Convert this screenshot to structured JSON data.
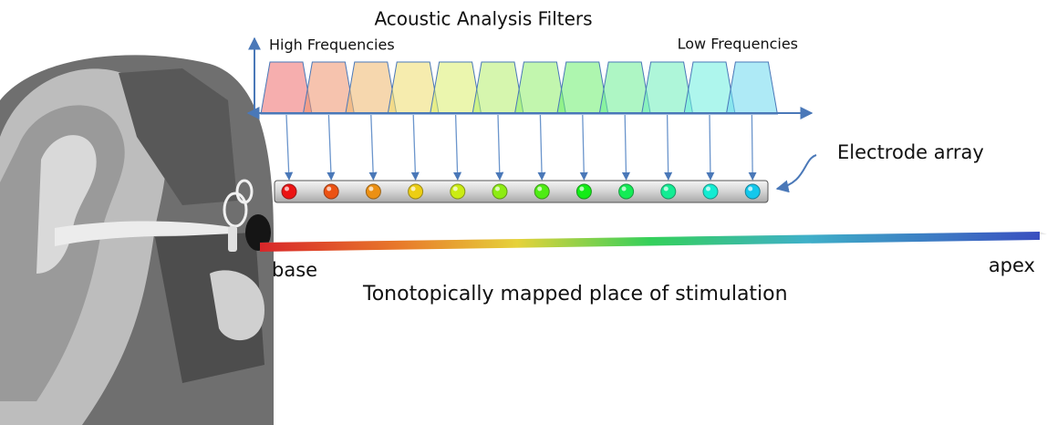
{
  "title": "Acoustic Analysis Filters",
  "high_label": "High Frequencies",
  "low_label": "Low Frequencies",
  "electrode_label": "Electrode array",
  "base_label": "base",
  "apex_label": "apex",
  "caption": "Tonotopically mapped place of stimulation"
}
